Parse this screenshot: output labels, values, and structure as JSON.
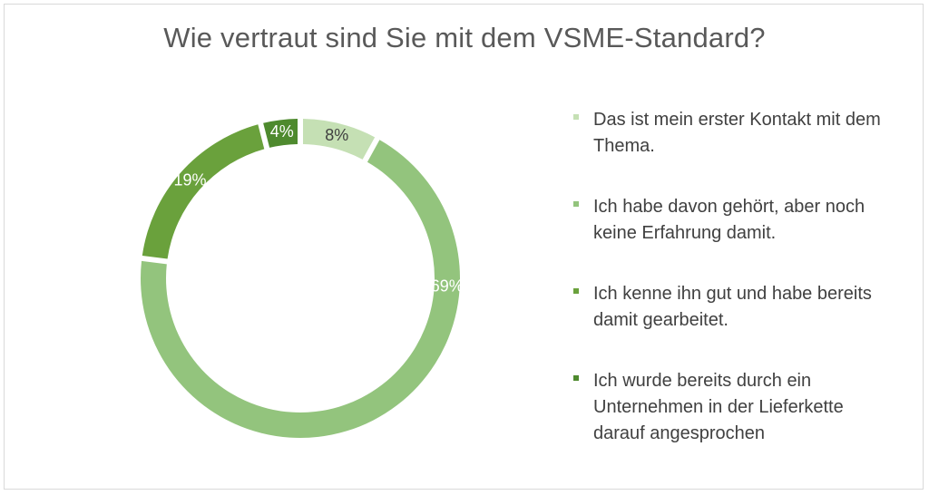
{
  "chart_data": {
    "type": "pie",
    "subtype": "doughnut",
    "title": "Wie vertraut sind Sie mit dem VSME-Standard?",
    "categories": [
      "Das ist mein erster Kontakt mit dem Thema.",
      "Ich habe davon gehört, aber noch keine Erfahrung damit.",
      "Ich kenne ihn gut und habe bereits damit gearbeitet.",
      "Ich wurde bereits durch ein Unternehmen in der Lieferkette darauf angesprochen"
    ],
    "values": [
      8,
      69,
      19,
      4
    ],
    "data_labels": [
      "8%",
      "69%",
      "19%",
      "4%"
    ],
    "colors": [
      "#c5e0b4",
      "#93c47d",
      "#6aa13c",
      "#4e8a2e"
    ],
    "label_colors": [
      "#404040",
      "#ffffff",
      "#ffffff",
      "#ffffff"
    ],
    "legend_position": "right"
  }
}
